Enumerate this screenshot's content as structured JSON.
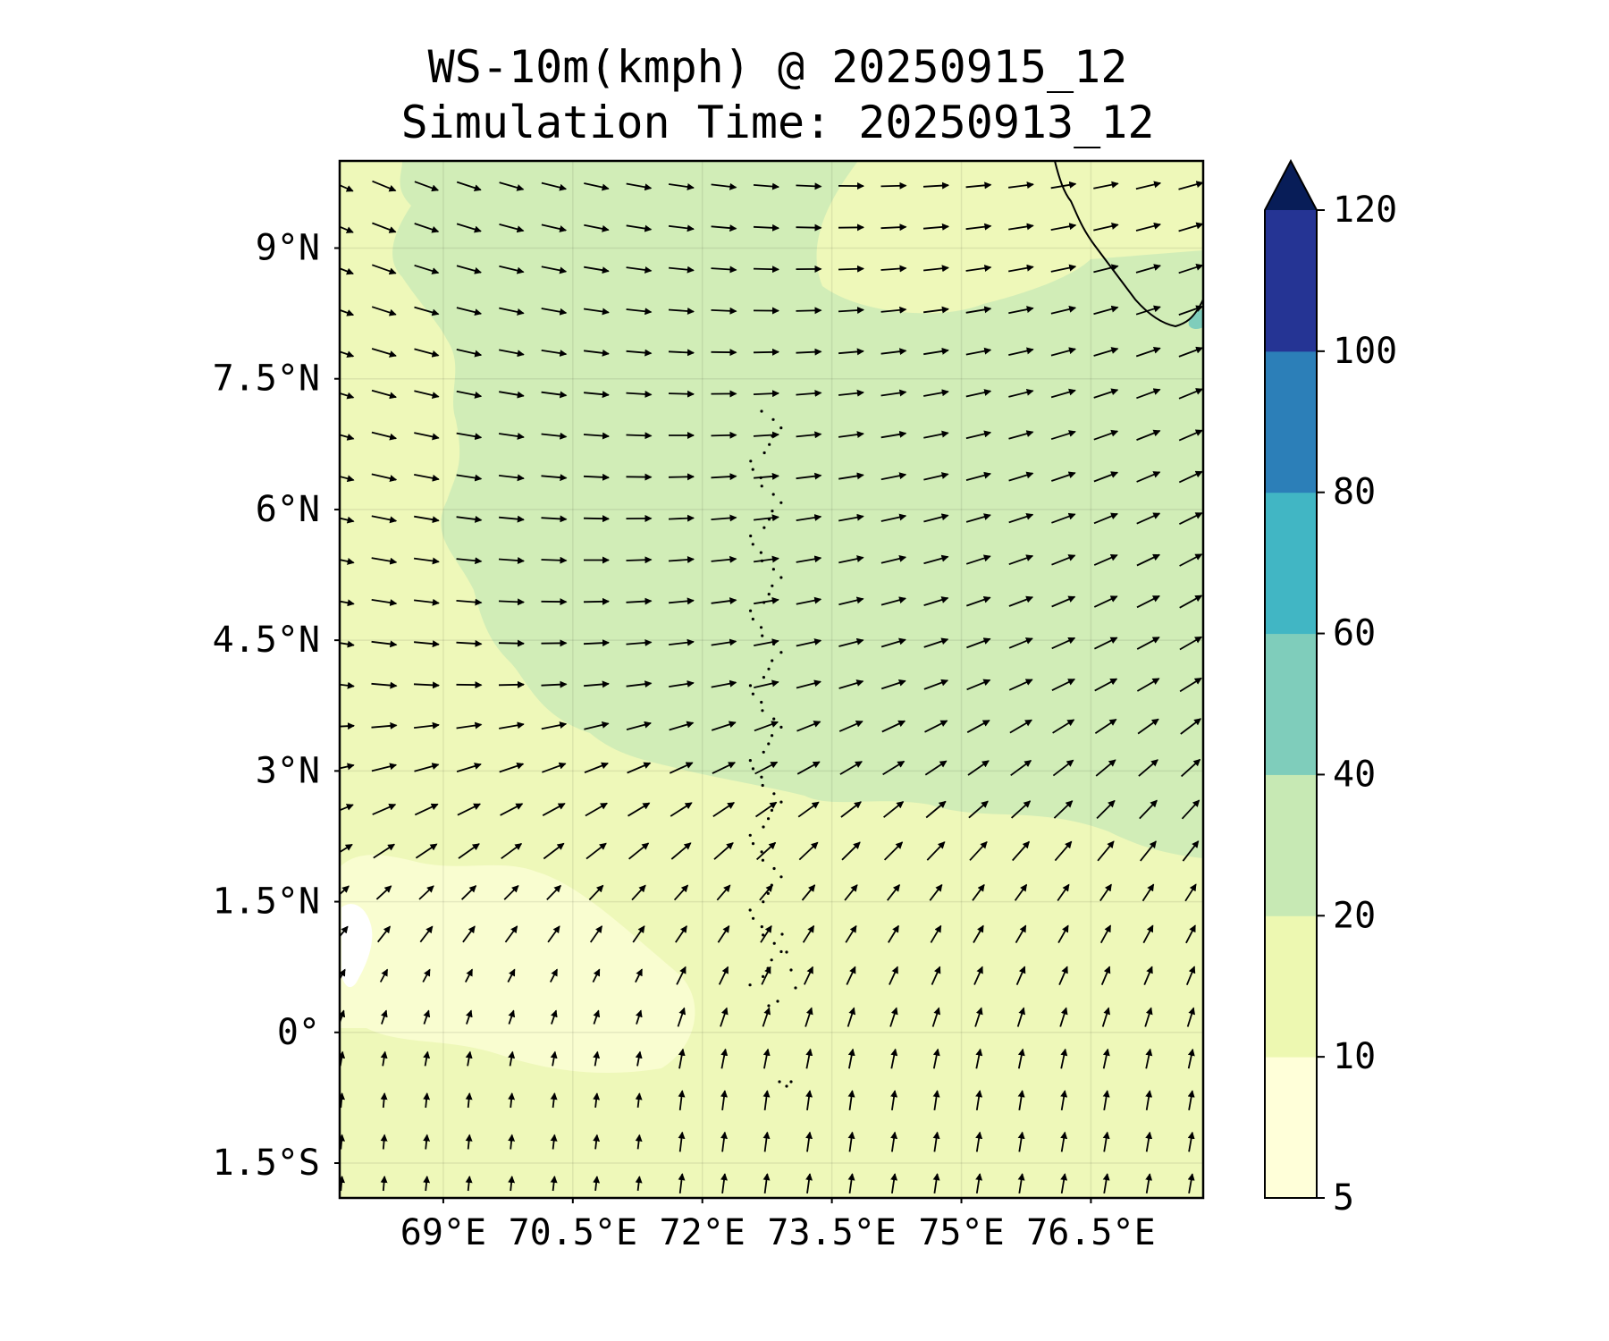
{
  "title": {
    "line1": "WS-10m(kmph) @ 20250915_12",
    "line2": "Simulation Time: 20250913_12"
  },
  "map": {
    "lon_range": [
      67.8,
      77.8
    ],
    "lat_range": [
      -1.9,
      10.0
    ],
    "lat_ticks": [
      {
        "value": 9,
        "label": "9°N"
      },
      {
        "value": 7.5,
        "label": "7.5°N"
      },
      {
        "value": 6,
        "label": "6°N"
      },
      {
        "value": 4.5,
        "label": "4.5°N"
      },
      {
        "value": 3,
        "label": "3°N"
      },
      {
        "value": 1.5,
        "label": "1.5°N"
      },
      {
        "value": 0,
        "label": "0°"
      },
      {
        "value": -1.5,
        "label": "1.5°S"
      }
    ],
    "lon_ticks": [
      {
        "value": 69,
        "label": "69°E"
      },
      {
        "value": 70.5,
        "label": "70.5°E"
      },
      {
        "value": 72,
        "label": "72°E"
      },
      {
        "value": 73.5,
        "label": "73.5°E"
      },
      {
        "value": 75,
        "label": "75°E"
      },
      {
        "value": 76.5,
        "label": "76.5°E"
      }
    ],
    "gridlines": true,
    "field": "10 m wind speed (kmph) with wind direction vectors",
    "wind_pattern": "northwesterly in the north-west, westerly in the centre, south-westerly in the east, southerly in the south",
    "coastline": "southern tip of India at top-right; Maldives atolls along ~73.5°E"
  },
  "colorbar": {
    "levels": [
      {
        "value": 5,
        "label": "5"
      },
      {
        "value": 10,
        "label": "10"
      },
      {
        "value": 20,
        "label": "20"
      },
      {
        "value": 40,
        "label": "40"
      },
      {
        "value": 60,
        "label": "60"
      },
      {
        "value": 80,
        "label": "80"
      },
      {
        "value": 100,
        "label": "100"
      },
      {
        "value": 120,
        "label": "120"
      }
    ],
    "colors": [
      "#ffffd9",
      "#edf8b1",
      "#c7e9b4",
      "#7fcdbb",
      "#41b6c4",
      "#2c7fb8",
      "#253494"
    ],
    "extend_max_color": "#081d58"
  },
  "chart_data": {
    "type": "heatmap",
    "field_units": "kmph",
    "colorbar_levels": [
      5,
      10,
      20,
      40,
      60,
      80,
      100,
      120
    ],
    "region_values": [
      {
        "region": "north-west and central band",
        "range": [
          20,
          40
        ]
      },
      {
        "region": "east of 73.5°E, 3°N–8°N",
        "range": [
          20,
          40
        ]
      },
      {
        "region": "south and south-west",
        "range": [
          10,
          20
        ]
      },
      {
        "region": "around 69°E, 0°–1.5°N",
        "range": [
          5,
          10
        ]
      },
      {
        "region": "small patch near 77.8°E, 8°N",
        "range": [
          40,
          60
        ]
      }
    ]
  }
}
